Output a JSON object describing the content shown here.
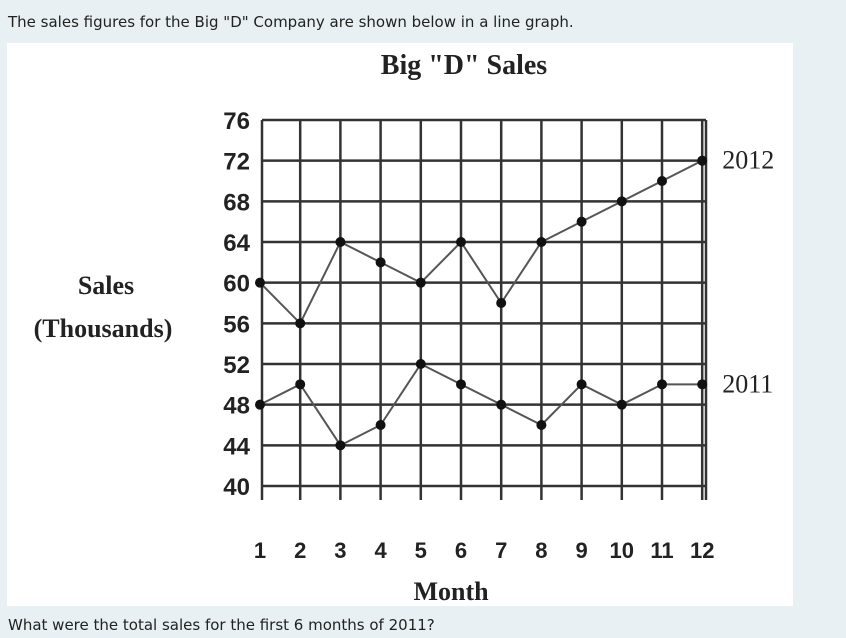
{
  "intro_text": "The sales figures for the Big \"D\" Company are shown below in a line graph.",
  "question_text": "What were the total sales for the first 6 months of 2011?",
  "chart_data": {
    "type": "line",
    "title": "Big \"D\" Sales",
    "xlabel": "Month",
    "ylabel_line1": "Sales",
    "ylabel_line2": "(Thousands)",
    "x": [
      1,
      2,
      3,
      4,
      5,
      6,
      7,
      8,
      9,
      10,
      11,
      12
    ],
    "x_tick_labels": [
      "1",
      "2",
      "3",
      "4",
      "5",
      "6",
      "7",
      "8",
      "9",
      "10",
      "11",
      "12"
    ],
    "y_tick_values": [
      40,
      44,
      48,
      52,
      56,
      60,
      64,
      68,
      72,
      76
    ],
    "y_tick_labels": [
      "40",
      "44",
      "48",
      "52",
      "56",
      "60",
      "64",
      "68",
      "72",
      "76"
    ],
    "ylim": [
      40,
      76
    ],
    "grid": true,
    "series": [
      {
        "name": "2012",
        "values": [
          60,
          56,
          64,
          62,
          60,
          64,
          58,
          64,
          66,
          68,
          70,
          72
        ]
      },
      {
        "name": "2011",
        "values": [
          48,
          50,
          44,
          46,
          52,
          50,
          48,
          46,
          50,
          48,
          50,
          50
        ]
      }
    ]
  },
  "colors": {
    "line": "#555555",
    "marker": "#111111",
    "grid": "#333333",
    "text": "#222222"
  }
}
